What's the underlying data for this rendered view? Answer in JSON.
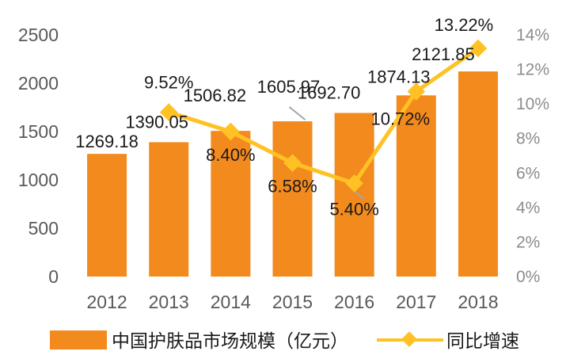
{
  "chart_data": {
    "type": "bar+line",
    "categories": [
      "2012",
      "2013",
      "2014",
      "2015",
      "2016",
      "2017",
      "2018"
    ],
    "series": [
      {
        "name": "中国护肤品市场规模（亿元）",
        "type": "bar",
        "axis": "left",
        "color": "#F28A1E",
        "values": [
          1269.18,
          1390.05,
          1506.82,
          1605.97,
          1692.7,
          1874.13,
          2121.85
        ],
        "labels": [
          "1269.18",
          "1390.05",
          "1506.82",
          "1605.97",
          "1692.70",
          "1874.13",
          "2121.85"
        ]
      },
      {
        "name": "同比增速",
        "type": "line",
        "axis": "right",
        "color": "#FFC124",
        "marker": "diamond",
        "values": [
          null,
          9.52,
          8.4,
          6.58,
          5.4,
          10.72,
          13.22
        ],
        "labels": [
          "",
          "9.52%",
          "8.40%",
          "6.58%",
          "5.40%",
          "10.72%",
          "13.22%"
        ]
      }
    ],
    "y_left": {
      "range": [
        0,
        2500
      ],
      "ticks": [
        0,
        500,
        1000,
        1500,
        2000,
        2500
      ],
      "tick_labels": [
        "0",
        "500",
        "1000",
        "1500",
        "2000",
        "2500"
      ]
    },
    "y_right": {
      "range": [
        0,
        14
      ],
      "ticks": [
        0,
        2,
        4,
        6,
        8,
        10,
        12,
        14
      ],
      "tick_labels": [
        "0%",
        "2%",
        "4%",
        "6%",
        "8%",
        "10%",
        "12%",
        "14%"
      ]
    },
    "grid": false,
    "legend_position": "bottom",
    "legend": [
      {
        "label": "中国护肤品市场规模（亿元）",
        "symbol": "bar-swatch",
        "color": "#F28A1E"
      },
      {
        "label": "同比增速",
        "symbol": "line-diamond",
        "color": "#FFC124"
      }
    ]
  }
}
